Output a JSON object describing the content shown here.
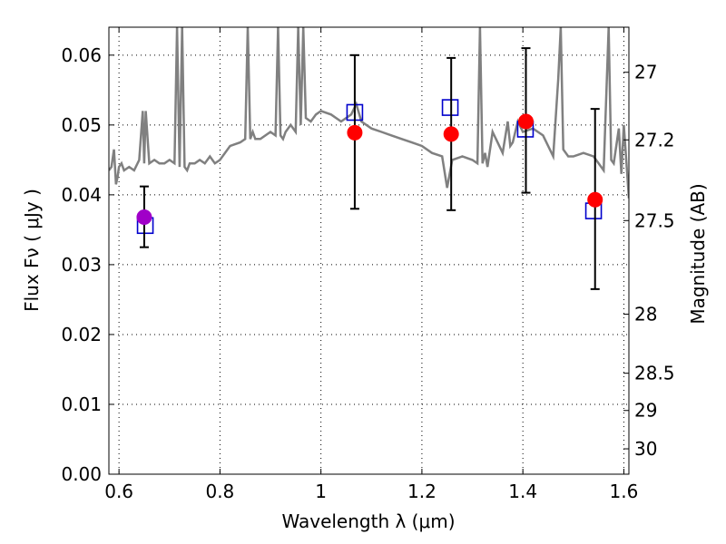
{
  "chart_data": {
    "type": "scatter",
    "xlabel": "Wavelength  λ (μm)",
    "ylabel": "Flux  Fν  ( μJy )",
    "y2label": "Magnitude (AB)",
    "xlim": [
      0.58,
      1.61
    ],
    "ylim": [
      0.0,
      0.064
    ],
    "x_ticks": [
      0.6,
      0.8,
      1.0,
      1.2,
      1.4,
      1.6
    ],
    "x_tick_labels": [
      "0.6",
      "0.8",
      "1",
      "1.2",
      "1.4",
      "1.6"
    ],
    "y_ticks": [
      0.0,
      0.01,
      0.02,
      0.03,
      0.04,
      0.05,
      0.06
    ],
    "y_tick_labels": [
      "0.00",
      "0.01",
      "0.02",
      "0.03",
      "0.04",
      "0.05",
      "0.06"
    ],
    "mag_ticks": [
      27,
      27.2,
      27.5,
      28,
      28.5,
      29,
      30
    ],
    "mag_tick_labels": [
      "27",
      "27.2",
      "27.5",
      "28",
      "28.5",
      "29",
      "30"
    ],
    "grid": true,
    "colors": {
      "spectrum": "#808080",
      "observed": "#ff0000",
      "observed_first": "#a000c8",
      "model": "#0000cc",
      "errorbar": "#000000"
    },
    "series": [
      {
        "kind": "line",
        "color": "#808080",
        "x": [
          0.58,
          0.585,
          0.59,
          0.594,
          0.597,
          0.6,
          0.605,
          0.61,
          0.62,
          0.63,
          0.64,
          0.647,
          0.65,
          0.653,
          0.66,
          0.67,
          0.68,
          0.69,
          0.7,
          0.71,
          0.715,
          0.72,
          0.725,
          0.73,
          0.735,
          0.74,
          0.75,
          0.76,
          0.77,
          0.78,
          0.79,
          0.8,
          0.82,
          0.84,
          0.85,
          0.855,
          0.86,
          0.865,
          0.87,
          0.88,
          0.9,
          0.91,
          0.915,
          0.92,
          0.925,
          0.93,
          0.94,
          0.95,
          0.955,
          0.96,
          0.965,
          0.97,
          0.98,
          0.99,
          1.0,
          1.02,
          1.04,
          1.06,
          1.07,
          1.08,
          1.1,
          1.12,
          1.14,
          1.16,
          1.18,
          1.2,
          1.22,
          1.24,
          1.25,
          1.26,
          1.28,
          1.3,
          1.31,
          1.315,
          1.32,
          1.325,
          1.33,
          1.34,
          1.36,
          1.37,
          1.375,
          1.38,
          1.39,
          1.4,
          1.42,
          1.44,
          1.46,
          1.47,
          1.475,
          1.48,
          1.49,
          1.5,
          1.52,
          1.54,
          1.56,
          1.57,
          1.575,
          1.58,
          1.59,
          1.595,
          1.6,
          1.61
        ],
        "y": [
          0.0435,
          0.044,
          0.0465,
          0.0415,
          0.0425,
          0.044,
          0.0445,
          0.0435,
          0.044,
          0.0435,
          0.045,
          0.052,
          0.0445,
          0.052,
          0.0445,
          0.045,
          0.0445,
          0.0445,
          0.045,
          0.0445,
          0.064,
          0.044,
          0.064,
          0.044,
          0.0435,
          0.0445,
          0.0445,
          0.045,
          0.0445,
          0.0455,
          0.0445,
          0.045,
          0.047,
          0.0475,
          0.048,
          0.064,
          0.048,
          0.049,
          0.048,
          0.048,
          0.049,
          0.0485,
          0.064,
          0.0485,
          0.048,
          0.049,
          0.05,
          0.049,
          0.064,
          0.05,
          0.064,
          0.051,
          0.0505,
          0.0515,
          0.052,
          0.0515,
          0.0505,
          0.0515,
          0.053,
          0.0505,
          0.0495,
          0.049,
          0.0485,
          0.048,
          0.0475,
          0.047,
          0.046,
          0.0455,
          0.041,
          0.045,
          0.0455,
          0.045,
          0.0445,
          0.064,
          0.0445,
          0.046,
          0.044,
          0.049,
          0.046,
          0.0505,
          0.047,
          0.0475,
          0.0505,
          0.049,
          0.0495,
          0.0485,
          0.0455,
          0.0565,
          0.064,
          0.0465,
          0.0455,
          0.0455,
          0.046,
          0.0455,
          0.0435,
          0.064,
          0.045,
          0.0445,
          0.0495,
          0.043,
          0.05,
          0.0395
        ]
      },
      {
        "kind": "points",
        "marker": "circle",
        "x": [
          0.65,
          1.067,
          1.258,
          1.406,
          1.543
        ],
        "y": [
          0.0368,
          0.0489,
          0.0487,
          0.0505,
          0.0393
        ],
        "yerr_low": [
          0.0325,
          0.038,
          0.0378,
          0.0403,
          0.0265
        ],
        "yerr_high": [
          0.0412,
          0.06,
          0.0596,
          0.061,
          0.0523
        ]
      },
      {
        "kind": "points",
        "marker": "square-open",
        "x": [
          0.652,
          1.067,
          1.256,
          1.405,
          1.54
        ],
        "y": [
          0.0356,
          0.0518,
          0.0525,
          0.0494,
          0.0377
        ]
      }
    ]
  }
}
